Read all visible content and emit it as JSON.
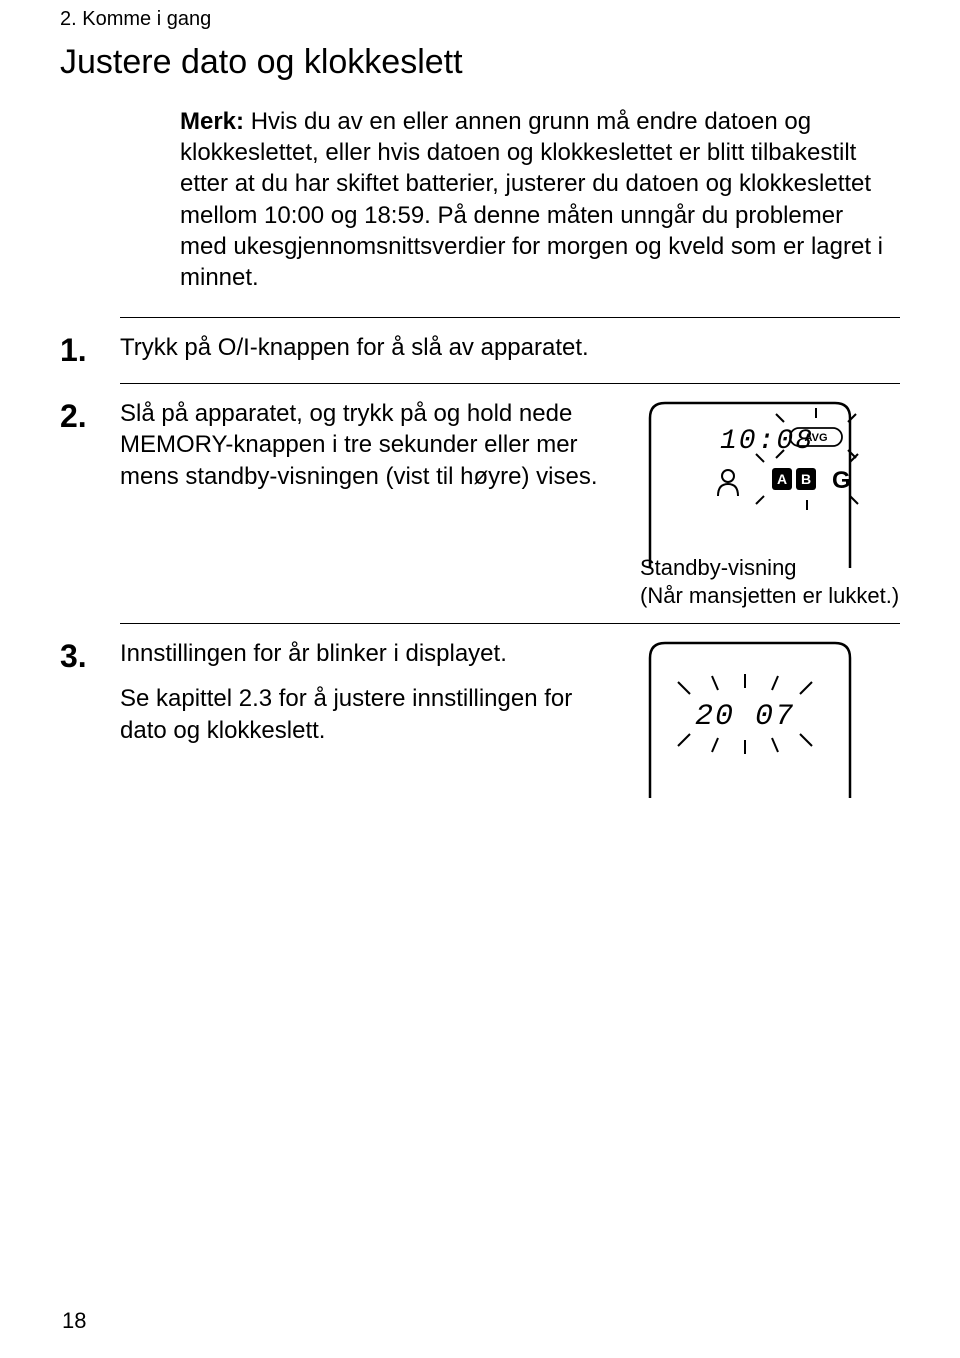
{
  "chapter": "2. Komme i gang",
  "title": "Justere dato og klokkeslett",
  "note_label": "Merk:",
  "note_text": "Hvis du av en eller annen grunn må endre datoen og klokkeslettet, eller hvis datoen og klokkeslettet er blitt tilbakestilt etter at du har skiftet batterier, justerer du datoen og klokkeslettet mellom 10:00 og 18:59. På denne måten unngår du problemer med ukesgjennomsnittsverdier for morgen og kveld som er lagret i minnet.",
  "steps": [
    {
      "num": "1.",
      "text": "Trykk på O/I-knappen for å slå av apparatet."
    },
    {
      "num": "2.",
      "text": "Slå på apparatet, og trykk på og hold nede MEMORY-knappen i tre sekunder eller mer mens standby-visningen (vist til høyre) vises."
    },
    {
      "num": "3.",
      "text": "Innstillingen for år blinker i displayet.",
      "sub": "Se kapittel 2.3 for å justere innstillingen for dato og klokkeslett."
    }
  ],
  "fig1": {
    "time": "10:08",
    "caption": "Standby-visning\n(Når mansjetten er lukket.)",
    "avg_label": "AVG",
    "box_letters": [
      "A",
      "B",
      "G"
    ]
  },
  "fig2": {
    "year": "20 07"
  },
  "page_number": "18",
  "colors": {
    "text": "#000000",
    "bg": "#ffffff",
    "rule": "#000000"
  }
}
